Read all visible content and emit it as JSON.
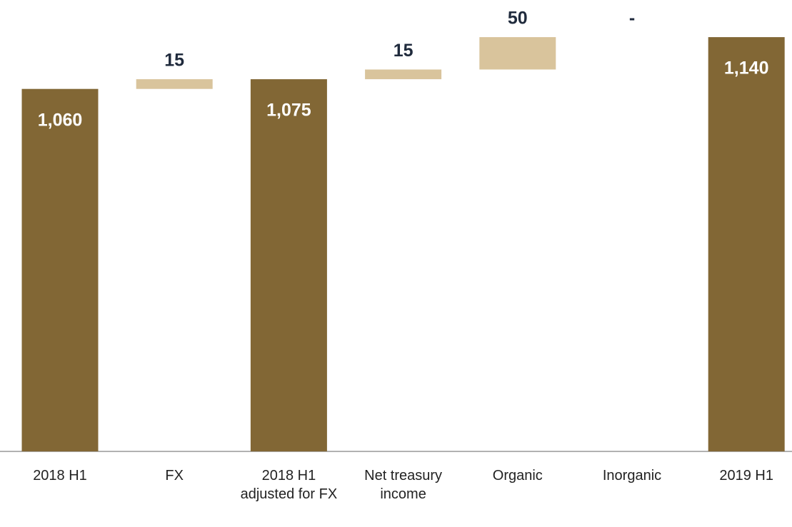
{
  "chart_data": {
    "type": "waterfall",
    "categories": [
      "2018 H1",
      "FX",
      "2018 H1 adjusted for FX",
      "Net treasury income",
      "Organic",
      "Inorganic",
      "2019 H1"
    ],
    "values": [
      1060,
      15,
      1075,
      15,
      50,
      0,
      1140
    ],
    "value_labels": [
      "1,060",
      "15",
      "1,075",
      "15",
      "50",
      "-",
      "1,140"
    ],
    "totals": [
      true,
      false,
      true,
      false,
      false,
      false,
      true
    ],
    "total_color": "#826735",
    "delta_color": "#d9c49c",
    "ylim": [
      500,
      1150
    ]
  }
}
